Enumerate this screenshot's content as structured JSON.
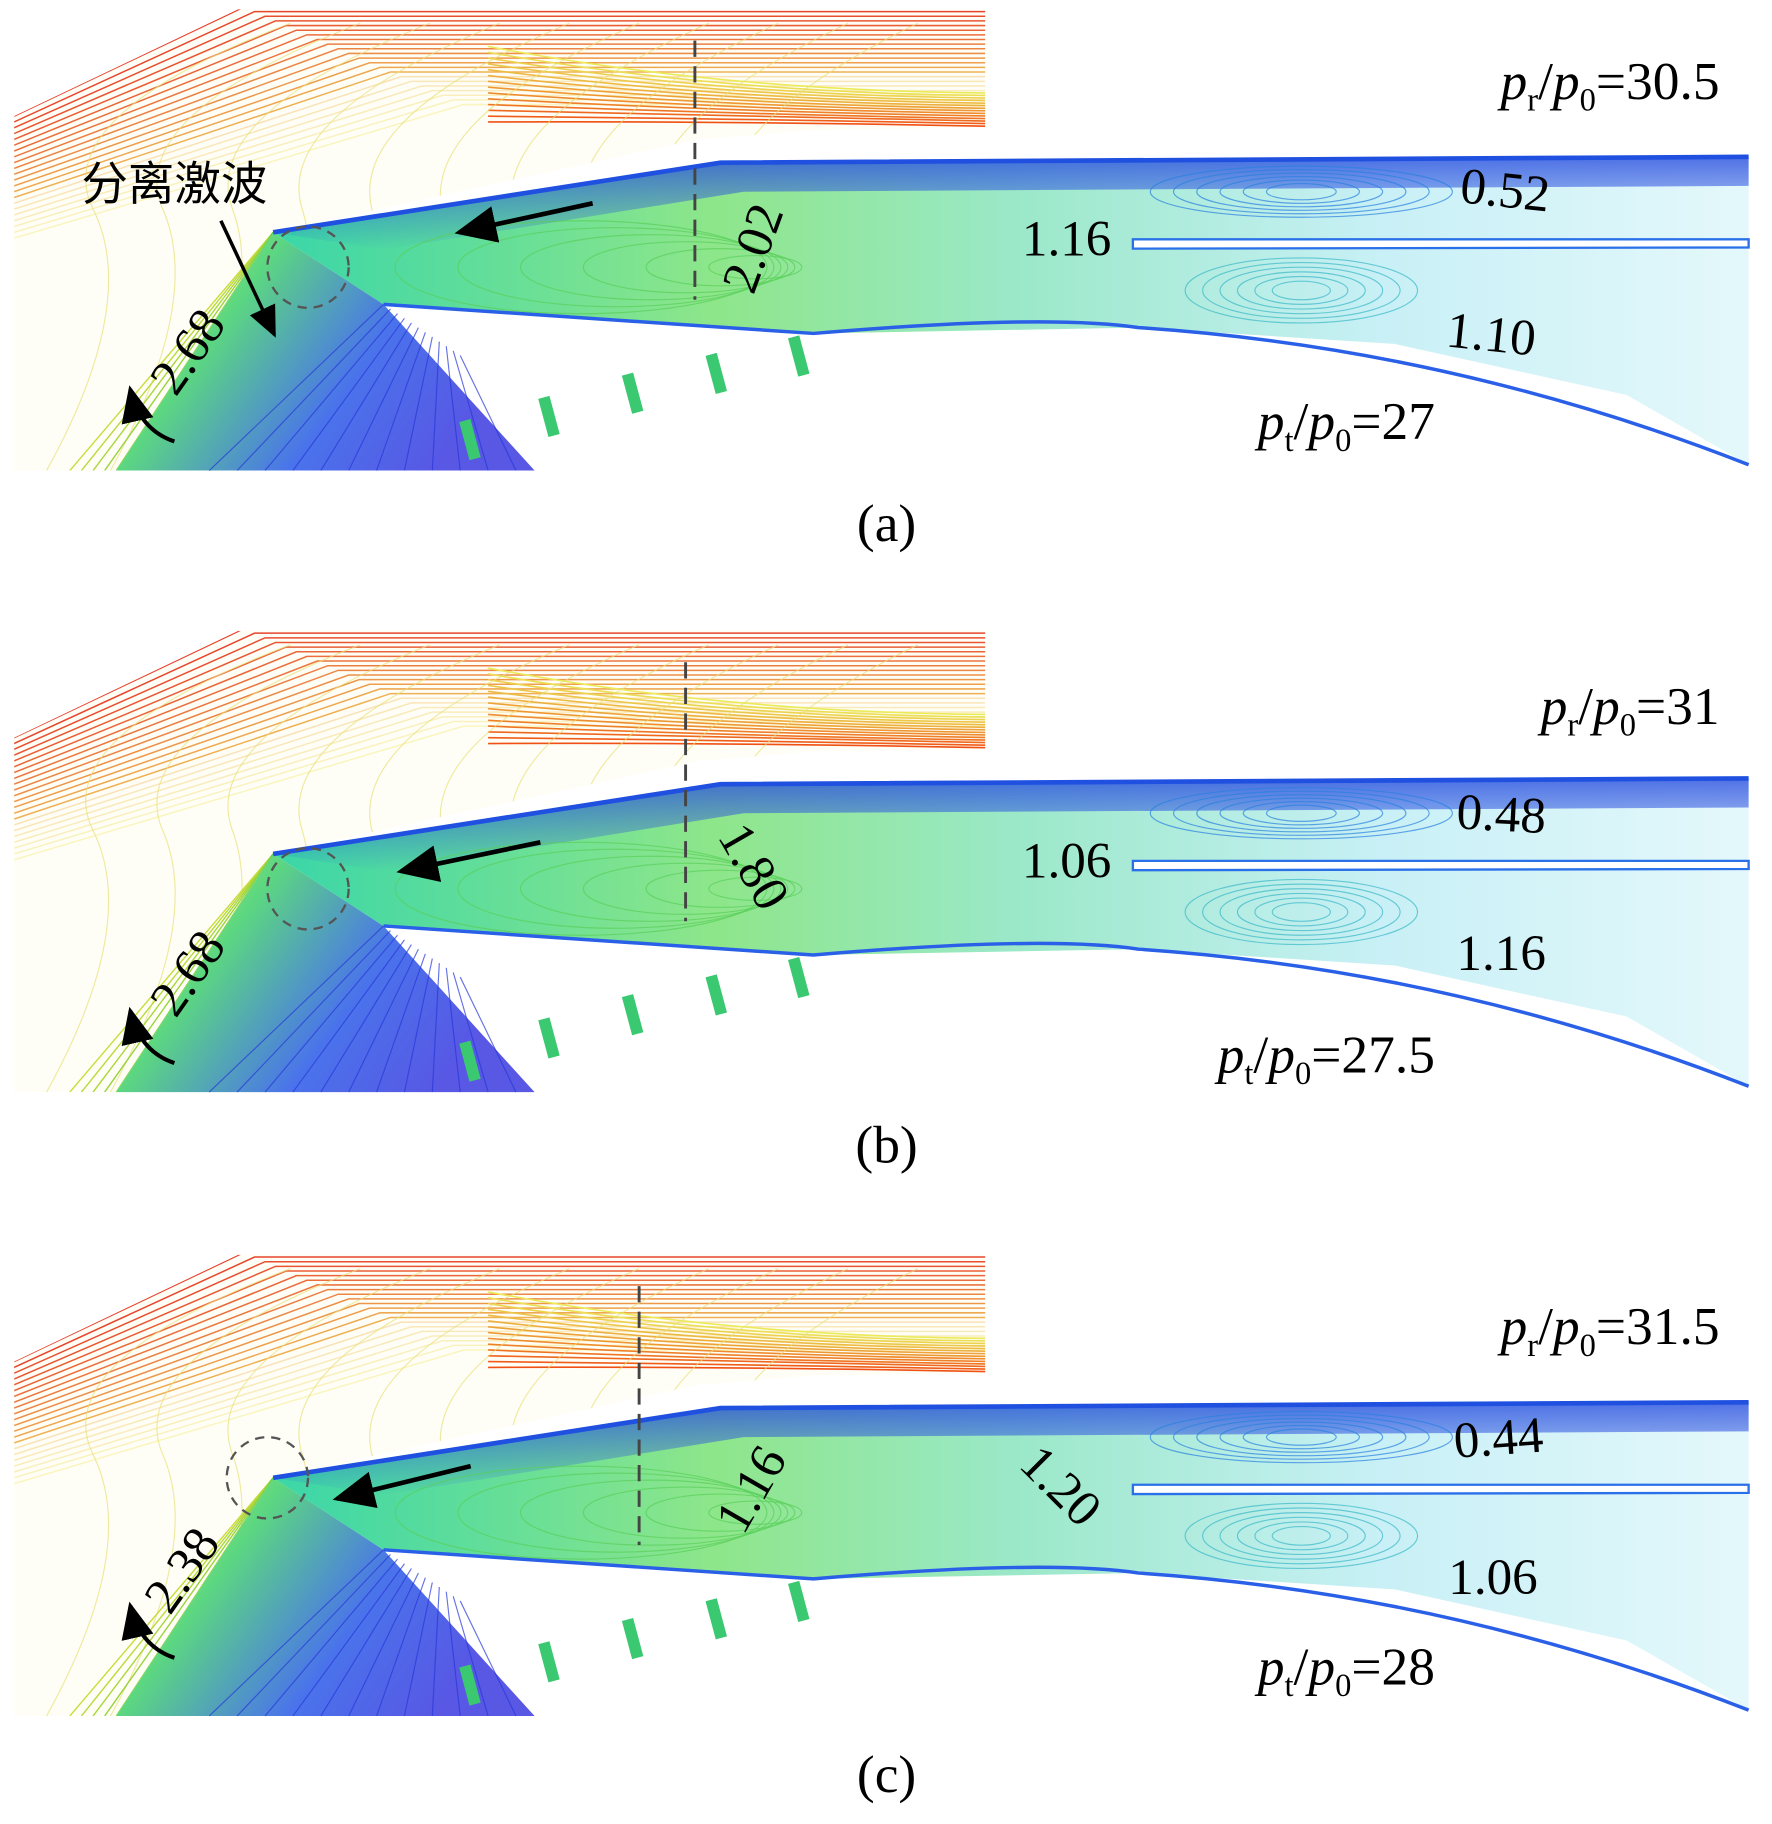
{
  "figure": {
    "panels": [
      {
        "caption": "(a)",
        "annotation": "分离激波",
        "top_ratio": {
          "symbol": "p",
          "symbol_sub": "r",
          "slash": "/",
          "ref": "p",
          "ref_sub": "0",
          "equals": "=30.5"
        },
        "bottom_ratio": {
          "symbol": "p",
          "symbol_sub": "t",
          "slash": "/",
          "ref": "p",
          "ref_sub": "0",
          "equals": "=27"
        },
        "values": [
          "2.68",
          "2.02",
          "1.16",
          "0.52",
          "1.10"
        ]
      },
      {
        "caption": "(b)",
        "top_ratio": {
          "symbol": "p",
          "symbol_sub": "r",
          "slash": "/",
          "ref": "p",
          "ref_sub": "0",
          "equals": "=31"
        },
        "bottom_ratio": {
          "symbol": "p",
          "symbol_sub": "t",
          "slash": "/",
          "ref": "p",
          "ref_sub": "0",
          "equals": "=27.5"
        },
        "values": [
          "2.68",
          "1.80",
          "1.06",
          "0.48",
          "1.16"
        ]
      },
      {
        "caption": "(c)",
        "top_ratio": {
          "symbol": "p",
          "symbol_sub": "r",
          "slash": "/",
          "ref": "p",
          "ref_sub": "0",
          "equals": "=31.5"
        },
        "bottom_ratio": {
          "symbol": "p",
          "symbol_sub": "t",
          "slash": "/",
          "ref": "p",
          "ref_sub": "0",
          "equals": "=28"
        },
        "values": [
          "2.38",
          "1.16",
          "1.20",
          "0.44",
          "1.06"
        ]
      }
    ]
  }
}
